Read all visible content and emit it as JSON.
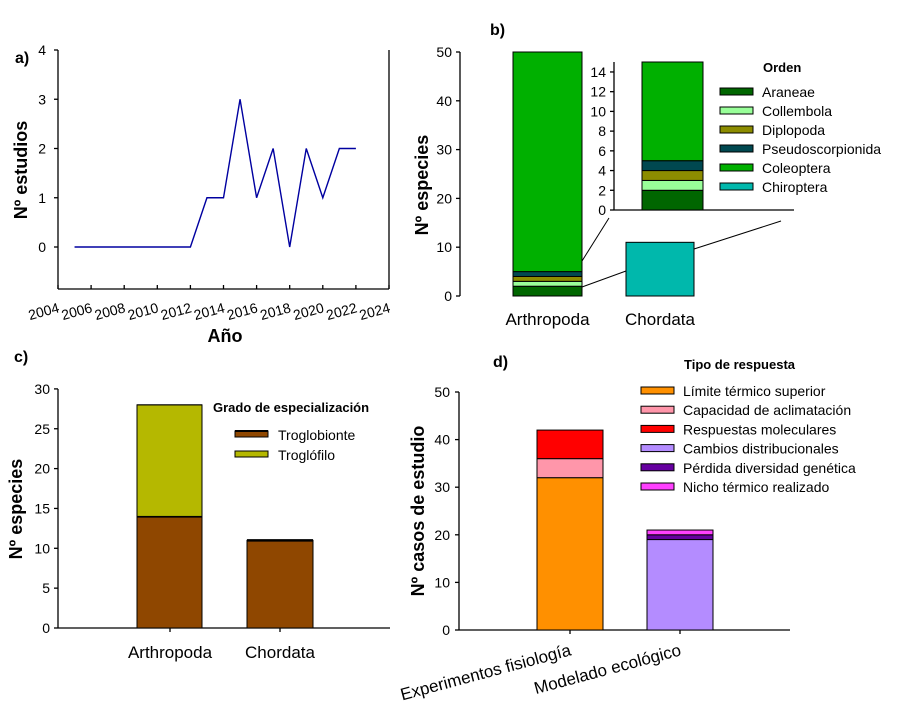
{
  "chart_data": [
    {
      "panel_label": "a)",
      "type": "line",
      "xlabel": "Año",
      "ylabel": "Nº estudios",
      "xlim": [
        2004,
        2024
      ],
      "ylim": [
        -0.83,
        4
      ],
      "xticks": [
        2004,
        2006,
        2008,
        2010,
        2012,
        2014,
        2016,
        2018,
        2020,
        2022,
        2024
      ],
      "yticks": [
        0,
        1,
        2,
        3,
        4
      ],
      "grid": false,
      "line_color": "#0000A0",
      "x": [
        2005,
        2006,
        2007,
        2008,
        2009,
        2010,
        2011,
        2012,
        2013,
        2014,
        2015,
        2016,
        2017,
        2018,
        2019,
        2020,
        2021,
        2022
      ],
      "y": [
        0,
        0,
        0,
        0,
        0,
        0,
        0,
        0,
        1,
        1,
        3,
        1,
        2,
        0,
        2,
        1,
        2,
        2
      ]
    },
    {
      "panel_label": "b)",
      "type": "bar",
      "stacked": true,
      "ylabel": "Nº especies",
      "ylim": [
        0,
        50
      ],
      "yticks": [
        0,
        10,
        20,
        30,
        40,
        50
      ],
      "categories": [
        "Arthropoda",
        "Chordata"
      ],
      "legend_title": "Orden",
      "legend_placement": "top-right",
      "series": [
        {
          "name": "Araneae",
          "color": "#006600",
          "values": [
            2,
            0
          ]
        },
        {
          "name": "Collembola",
          "color": "#99FF99",
          "values": [
            1,
            0
          ]
        },
        {
          "name": "Diplopoda",
          "color": "#8C8C00",
          "values": [
            1,
            0
          ]
        },
        {
          "name": "Pseudoscorpionida",
          "color": "#004850",
          "values": [
            1,
            0
          ]
        },
        {
          "name": "Coleoptera",
          "color": "#00B000",
          "values": [
            45,
            0
          ]
        },
        {
          "name": "Chiroptera",
          "color": "#00B8AC",
          "values": [
            0,
            11
          ]
        }
      ],
      "inset": {
        "ylim": [
          0,
          15
        ],
        "yticks": [
          0,
          2,
          4,
          6,
          8,
          10,
          12,
          14
        ],
        "category": "Arthropoda"
      }
    },
    {
      "panel_label": "c)",
      "type": "bar",
      "stacked": true,
      "ylabel": "Nº especies",
      "ylim": [
        0,
        30
      ],
      "yticks": [
        0,
        5,
        10,
        15,
        20,
        25,
        30
      ],
      "categories": [
        "Arthropoda",
        "Chordata"
      ],
      "legend_title": "Grado de especialización",
      "legend_placement": "top-right",
      "series": [
        {
          "name": "Troglobionte",
          "color": "#8F4700",
          "values": [
            14,
            11
          ]
        },
        {
          "name": "Troglófilo",
          "color": "#B5B800",
          "values": [
            14,
            0
          ]
        }
      ]
    },
    {
      "panel_label": "d)",
      "type": "bar",
      "stacked": true,
      "ylabel": "Nº casos de estudio",
      "ylim": [
        0,
        50
      ],
      "yticks": [
        0,
        10,
        20,
        30,
        40,
        50
      ],
      "categories": [
        "Experimentos fisiología",
        "Modelado ecológico"
      ],
      "legend_title": "Tipo de respuesta",
      "legend_placement": "top-right",
      "series": [
        {
          "name": "Límite térmico superior",
          "color": "#FF9000",
          "values": [
            32,
            0
          ]
        },
        {
          "name": "Capacidad de aclimatación",
          "color": "#FF96AA",
          "values": [
            4,
            0
          ]
        },
        {
          "name": "Respuestas moleculares",
          "color": "#FF0000",
          "values": [
            6,
            0
          ]
        },
        {
          "name": "Cambios distribucionales",
          "color": "#B48CFF",
          "values": [
            0,
            19
          ]
        },
        {
          "name": "Pérdida diversidad genética",
          "color": "#6600A0",
          "values": [
            0,
            1
          ]
        },
        {
          "name": "Nicho térmico realizado",
          "color": "#FF40FF",
          "values": [
            0,
            1
          ]
        }
      ]
    }
  ]
}
